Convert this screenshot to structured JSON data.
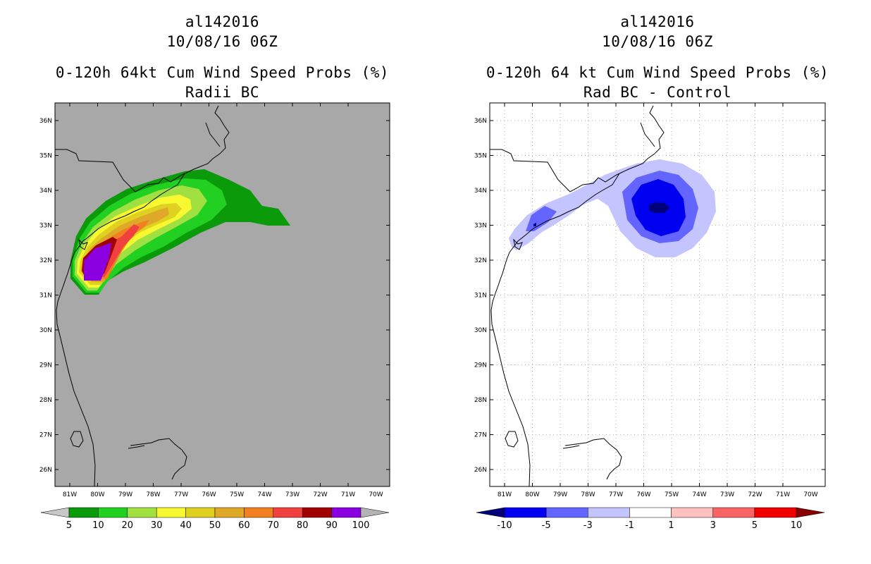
{
  "left": {
    "storm_id": "al142016",
    "datetime": "10/08/16 06Z",
    "title": "0-120h 64kt Cum Wind Speed Probs (%)",
    "subtitle": "Radii BC",
    "colors": {
      "background": "#a8a8a8"
    },
    "legend": {
      "colors": [
        "#c8c8c8",
        "#0a9a0a",
        "#22d022",
        "#a0e040",
        "#f8f830",
        "#e0d020",
        "#e0a828",
        "#f08020",
        "#f04040",
        "#a00000",
        "#8a00e0",
        "#b4b4b4"
      ],
      "labels": [
        "5",
        "10",
        "20",
        "30",
        "40",
        "50",
        "60",
        "70",
        "80",
        "90",
        "100"
      ]
    }
  },
  "right": {
    "storm_id": "al142016",
    "datetime": "10/08/16 06Z",
    "title": "0-120h 64 kt Cum Wind Speed Probs (%)",
    "subtitle": "Rad BC - Control",
    "colors": {
      "background": "#ffffff"
    },
    "legend": {
      "colors": [
        "#00007a",
        "#0000f0",
        "#6464ff",
        "#c4c4ff",
        "#ffffff",
        "#ffc0c0",
        "#f86464",
        "#f00000",
        "#8a0000"
      ],
      "labels": [
        "-10",
        "-5",
        "-3",
        "-1",
        "1",
        "3",
        "5",
        "10"
      ]
    }
  },
  "axes": {
    "lat_labels": [
      "36N",
      "35N",
      "34N",
      "33N",
      "32N",
      "31N",
      "30N",
      "29N",
      "28N",
      "27N",
      "26N"
    ],
    "lon_labels": [
      "81W",
      "80W",
      "79W",
      "78W",
      "77W",
      "76W",
      "75W",
      "74W",
      "73W",
      "72W",
      "71W",
      "70W"
    ]
  }
}
